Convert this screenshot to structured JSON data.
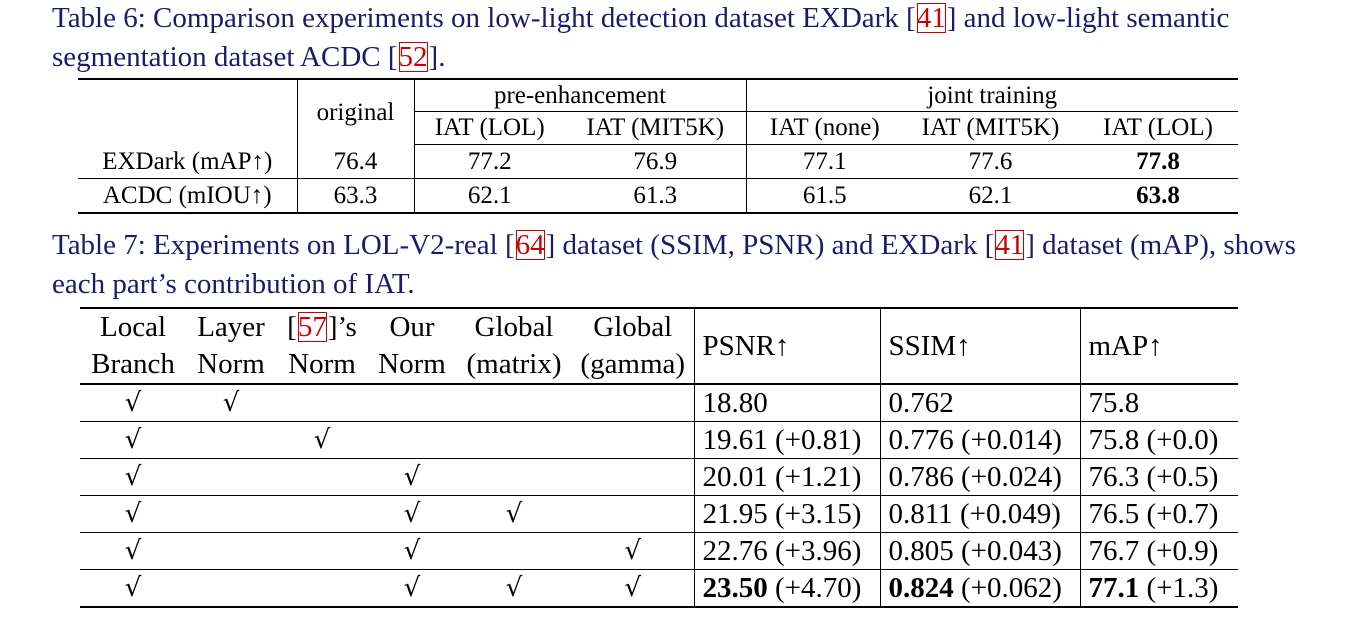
{
  "table6": {
    "caption_pre": "Table 6: Comparison experiments on low-light detection dataset EXDark [",
    "cite1": "41",
    "caption_mid": "] and low-light semantic segmentation dataset ACDC [",
    "cite2": "52",
    "caption_post": "].",
    "header": {
      "original": "original",
      "pre_enhancement": "pre-enhancement",
      "joint_training": "joint training",
      "sub": [
        "IAT (LOL)",
        "IAT (MIT5K)",
        "IAT (none)",
        "IAT (MIT5K)",
        "IAT (LOL)"
      ]
    },
    "rows": [
      {
        "label": "EXDark (mAP↑)",
        "values": [
          "76.4",
          "77.2",
          "76.9",
          "77.1",
          "77.6",
          "77.8"
        ]
      },
      {
        "label": "ACDC (mIOU↑)",
        "values": [
          "63.3",
          "62.1",
          "61.3",
          "61.5",
          "62.1",
          "63.8"
        ]
      }
    ]
  },
  "table7": {
    "caption_pre": "Table 7: Experiments on LOL-V2-real [",
    "cite1": "64",
    "caption_mid": "] dataset (SSIM, PSNR) and EXDark [",
    "cite2": "41",
    "caption_post": "] dataset (mAP), shows each part’s contribution of IAT.",
    "header": {
      "local": [
        "Local",
        "Branch"
      ],
      "layer": [
        "Layer",
        "Norm"
      ],
      "ref_cite": "57",
      "ref_suffix": "]’s",
      "ref_bottom": "Norm",
      "our": [
        "Our",
        "Norm"
      ],
      "gmatrix": [
        "Global",
        "(matrix)"
      ],
      "ggamma": [
        "Global",
        "(gamma)"
      ],
      "psnr": "PSNR↑",
      "ssim": "SSIM↑",
      "map": "mAP↑"
    },
    "check": "√",
    "rows": [
      {
        "checks": [
          1,
          1,
          0,
          0,
          0,
          0
        ],
        "psnr": "18.80",
        "psnr_d": "",
        "ssim": "0.762",
        "ssim_d": "",
        "map": "75.8",
        "map_d": ""
      },
      {
        "checks": [
          1,
          0,
          1,
          0,
          0,
          0
        ],
        "psnr": "19.61",
        "psnr_d": "(+0.81)",
        "ssim": "0.776",
        "ssim_d": "(+0.014)",
        "map": "75.8",
        "map_d": "(+0.0)"
      },
      {
        "checks": [
          1,
          0,
          0,
          1,
          0,
          0
        ],
        "psnr": "20.01",
        "psnr_d": "(+1.21)",
        "ssim": "0.786",
        "ssim_d": "(+0.024)",
        "map": "76.3",
        "map_d": "(+0.5)"
      },
      {
        "checks": [
          1,
          0,
          0,
          1,
          1,
          0
        ],
        "psnr": "21.95",
        "psnr_d": "(+3.15)",
        "ssim": "0.811",
        "ssim_d": "(+0.049)",
        "map": "76.5",
        "map_d": "(+0.7)"
      },
      {
        "checks": [
          1,
          0,
          0,
          1,
          0,
          1
        ],
        "psnr": "22.76",
        "psnr_d": "(+3.96)",
        "ssim": "0.805",
        "ssim_d": "(+0.043)",
        "map": "76.7",
        "map_d": "(+0.9)"
      },
      {
        "checks": [
          1,
          0,
          0,
          1,
          1,
          1
        ],
        "psnr": "23.50",
        "psnr_d": "(+4.70)",
        "ssim": "0.824",
        "ssim_d": "(+0.062)",
        "map": "77.1",
        "map_d": "(+1.3)"
      }
    ]
  }
}
